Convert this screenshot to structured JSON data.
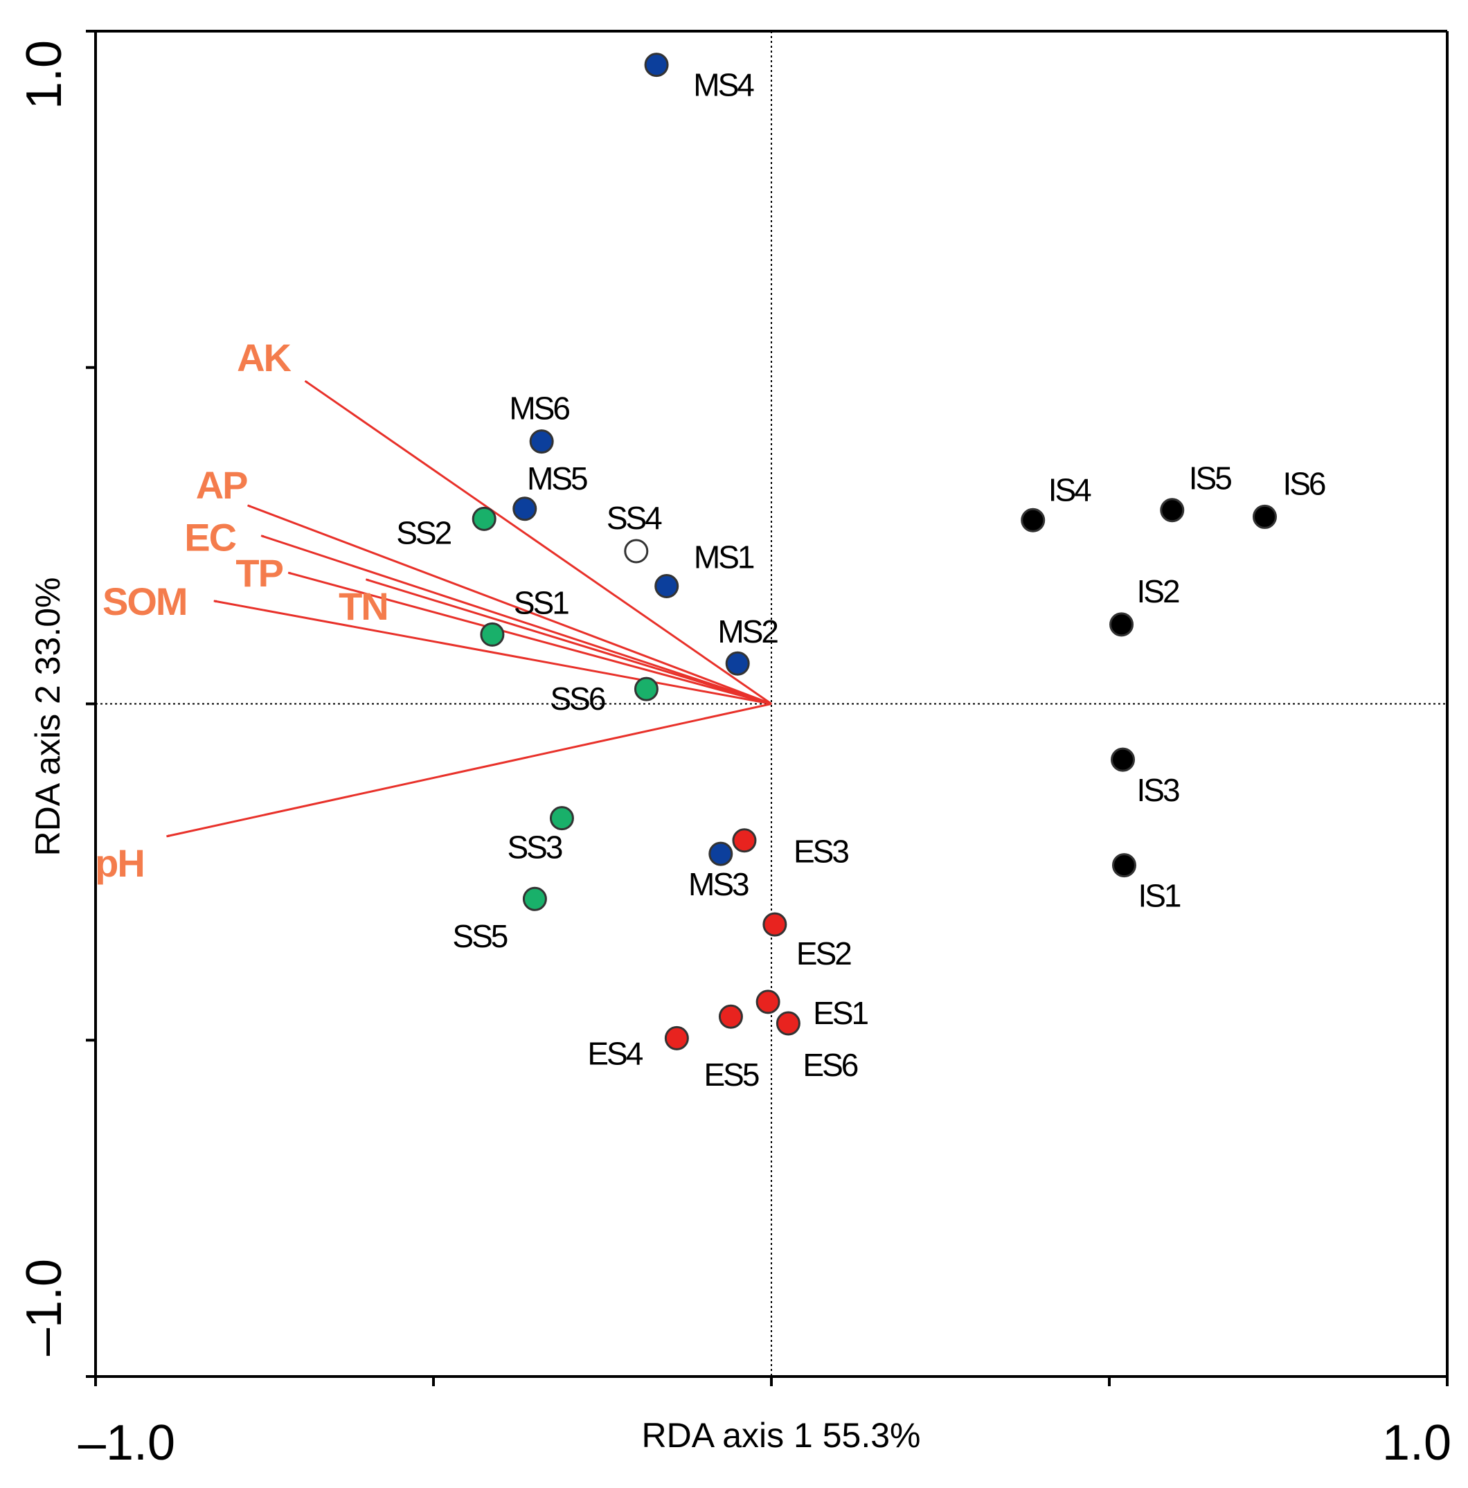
{
  "chart_data": {
    "type": "scatter",
    "subtype": "RDA biplot",
    "xlabel": "RDA axis 1 55.3%",
    "ylabel": "RDA axis 2 33.0%",
    "xlim": [
      -1.0,
      1.0
    ],
    "ylim": [
      -1.0,
      1.0
    ],
    "x_tick_labels": [
      "–1.0",
      "1.0"
    ],
    "y_tick_labels": [
      "–1.0",
      "1.0"
    ],
    "colors": {
      "ES": "#e8231f",
      "MS": "#0c3f9c",
      "SS": "#19b06a",
      "IS": "#000000",
      "open": "#ffffff",
      "arrow": "#e8312a",
      "env_text": "#f47c4c"
    },
    "series": [
      {
        "name": "MS",
        "color": "#0c3f9c",
        "points": [
          {
            "label": "MS4",
            "x": -0.17,
            "y": 0.95
          },
          {
            "label": "MS6",
            "x": -0.34,
            "y": 0.39
          },
          {
            "label": "MS5",
            "x": -0.365,
            "y": 0.29
          },
          {
            "label": "MS1",
            "x": -0.155,
            "y": 0.175
          },
          {
            "label": "MS2",
            "x": -0.05,
            "y": 0.06
          },
          {
            "label": "MS3",
            "x": -0.075,
            "y": -0.223
          }
        ]
      },
      {
        "name": "SS",
        "color": "#19b06a",
        "points": [
          {
            "label": "SS2",
            "x": -0.425,
            "y": 0.275
          },
          {
            "label": "SS4",
            "x": -0.2,
            "y": 0.227,
            "open": true
          },
          {
            "label": "SS1",
            "x": -0.413,
            "y": 0.103
          },
          {
            "label": "SS6",
            "x": -0.185,
            "y": 0.022
          },
          {
            "label": "SS3",
            "x": -0.31,
            "y": -0.17
          },
          {
            "label": "SS5",
            "x": -0.35,
            "y": -0.29
          }
        ]
      },
      {
        "name": "ES",
        "color": "#e8231f",
        "points": [
          {
            "label": "ES3",
            "x": -0.04,
            "y": -0.203
          },
          {
            "label": "ES2",
            "x": 0.005,
            "y": -0.328
          },
          {
            "label": "ES1",
            "x": -0.005,
            "y": -0.443
          },
          {
            "label": "ES6",
            "x": 0.025,
            "y": -0.475
          },
          {
            "label": "ES5",
            "x": -0.06,
            "y": -0.465
          },
          {
            "label": "ES4",
            "x": -0.14,
            "y": -0.497
          }
        ]
      },
      {
        "name": "IS",
        "color": "#000000",
        "points": [
          {
            "label": "IS4",
            "x": 0.387,
            "y": 0.273
          },
          {
            "label": "IS5",
            "x": 0.593,
            "y": 0.288
          },
          {
            "label": "IS6",
            "x": 0.73,
            "y": 0.278
          },
          {
            "label": "IS2",
            "x": 0.518,
            "y": 0.118
          },
          {
            "label": "IS3",
            "x": 0.52,
            "y": -0.083
          },
          {
            "label": "IS1",
            "x": 0.522,
            "y": -0.24
          }
        ]
      }
    ],
    "env_vectors": [
      {
        "label": "AK",
        "x": -0.69,
        "y": 0.48
      },
      {
        "label": "AP",
        "x": -0.775,
        "y": 0.295
      },
      {
        "label": "EC",
        "x": -0.755,
        "y": 0.25
      },
      {
        "label": "TP",
        "x": -0.715,
        "y": 0.195
      },
      {
        "label": "TN",
        "x": -0.6,
        "y": 0.185
      },
      {
        "label": "SOM",
        "x": -0.825,
        "y": 0.153
      },
      {
        "label": "pH",
        "x": -0.895,
        "y": -0.197
      }
    ]
  }
}
